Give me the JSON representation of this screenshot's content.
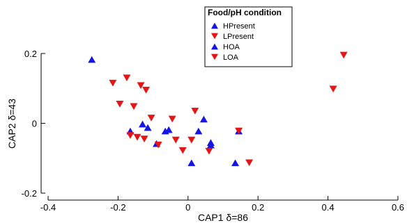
{
  "chart_data": {
    "type": "scatter",
    "xlabel": "CAP1 δ=86",
    "ylabel": "CAP2 δ=43",
    "xlim": [
      -0.4,
      0.6
    ],
    "ylim": [
      -0.2,
      0.2
    ],
    "xticks": [
      -0.4,
      -0.2,
      0,
      0.2,
      0.4,
      0.6
    ],
    "yticks": [
      -0.2,
      0,
      0.2
    ],
    "xtick_labels": [
      "-0.4",
      "-0.2",
      "0",
      "0.2",
      "0.4",
      "0.6"
    ],
    "ytick_labels": [
      "-0.2",
      "0",
      "0.2"
    ],
    "grid": false,
    "legend": {
      "title": "Food/pH condition",
      "placement": "top-center"
    },
    "series": [
      {
        "name": "HPresent",
        "marker": "triangle-up",
        "color": "#1515e6",
        "points": [
          {
            "x": -0.275,
            "y": 0.183
          },
          {
            "x": -0.165,
            "y": -0.022
          },
          {
            "x": -0.13,
            "y": -0.002
          },
          {
            "x": -0.115,
            "y": -0.012
          },
          {
            "x": -0.09,
            "y": -0.058
          },
          {
            "x": -0.065,
            "y": -0.022
          },
          {
            "x": -0.055,
            "y": -0.018
          },
          {
            "x": 0.01,
            "y": -0.113
          },
          {
            "x": 0.045,
            "y": 0.012
          },
          {
            "x": 0.03,
            "y": -0.022
          },
          {
            "x": 0.065,
            "y": -0.055
          },
          {
            "x": 0.065,
            "y": -0.062
          },
          {
            "x": 0.135,
            "y": -0.113
          },
          {
            "x": 0.145,
            "y": -0.022
          }
        ]
      },
      {
        "name": "LPresent",
        "marker": "triangle-down",
        "color": "#e61515",
        "points": [
          {
            "x": -0.215,
            "y": 0.115
          },
          {
            "x": -0.195,
            "y": 0.055
          },
          {
            "x": -0.175,
            "y": 0.13
          },
          {
            "x": -0.155,
            "y": 0.048
          },
          {
            "x": -0.135,
            "y": 0.108
          },
          {
            "x": -0.12,
            "y": 0.095
          },
          {
            "x": -0.105,
            "y": 0.015
          },
          {
            "x": 0.415,
            "y": 0.098
          },
          {
            "x": 0.445,
            "y": 0.195
          }
        ]
      },
      {
        "name": "HOA",
        "marker": "triangle-up",
        "color": "#1515e6",
        "points": []
      },
      {
        "name": "LOA",
        "marker": "triangle-down",
        "color": "#e61515",
        "points": [
          {
            "x": -0.165,
            "y": -0.035
          },
          {
            "x": -0.145,
            "y": -0.04
          },
          {
            "x": -0.125,
            "y": -0.045
          },
          {
            "x": -0.085,
            "y": -0.062
          },
          {
            "x": -0.045,
            "y": 0.012
          },
          {
            "x": -0.035,
            "y": -0.048
          },
          {
            "x": -0.015,
            "y": -0.078
          },
          {
            "x": 0.01,
            "y": -0.048
          },
          {
            "x": 0.02,
            "y": 0.035
          },
          {
            "x": 0.06,
            "y": -0.08
          },
          {
            "x": 0.145,
            "y": -0.022
          },
          {
            "x": 0.175,
            "y": -0.113
          }
        ]
      }
    ]
  }
}
